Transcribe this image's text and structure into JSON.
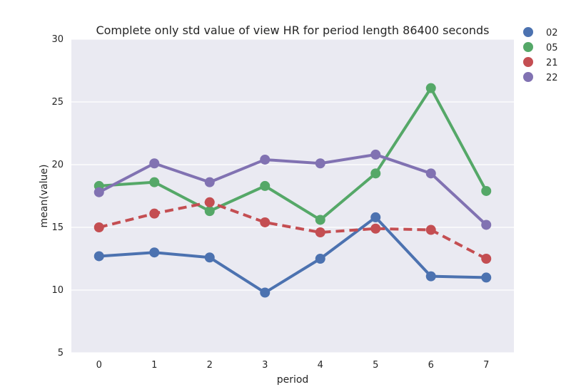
{
  "chart_data": {
    "type": "line",
    "title": "Complete only std value of view HR for period length 86400 seconds",
    "xlabel": "period",
    "ylabel": "mean(value)",
    "categories": [
      "0",
      "1",
      "2",
      "3",
      "4",
      "5",
      "6",
      "7"
    ],
    "ylim": [
      5,
      30
    ],
    "yticks": [
      "5",
      "10",
      "15",
      "20",
      "25",
      "30"
    ],
    "grid": true,
    "legend_position": "outside-top-right",
    "background_color": "#eaeaf2",
    "series": [
      {
        "name": "02",
        "color": "#4c72b0",
        "dashed": false,
        "values": [
          12.7,
          13.0,
          12.6,
          9.8,
          12.5,
          15.8,
          11.1,
          11.0
        ]
      },
      {
        "name": "05",
        "color": "#55a868",
        "dashed": false,
        "values": [
          18.3,
          18.6,
          16.3,
          18.3,
          15.6,
          19.3,
          26.1,
          17.9
        ]
      },
      {
        "name": "21",
        "color": "#c44e52",
        "dashed": true,
        "values": [
          15.0,
          16.1,
          17.0,
          15.4,
          14.6,
          14.9,
          14.8,
          12.5
        ]
      },
      {
        "name": "22",
        "color": "#8172b2",
        "dashed": false,
        "values": [
          17.8,
          20.1,
          18.6,
          20.4,
          20.1,
          20.8,
          19.3,
          15.2
        ]
      }
    ]
  }
}
